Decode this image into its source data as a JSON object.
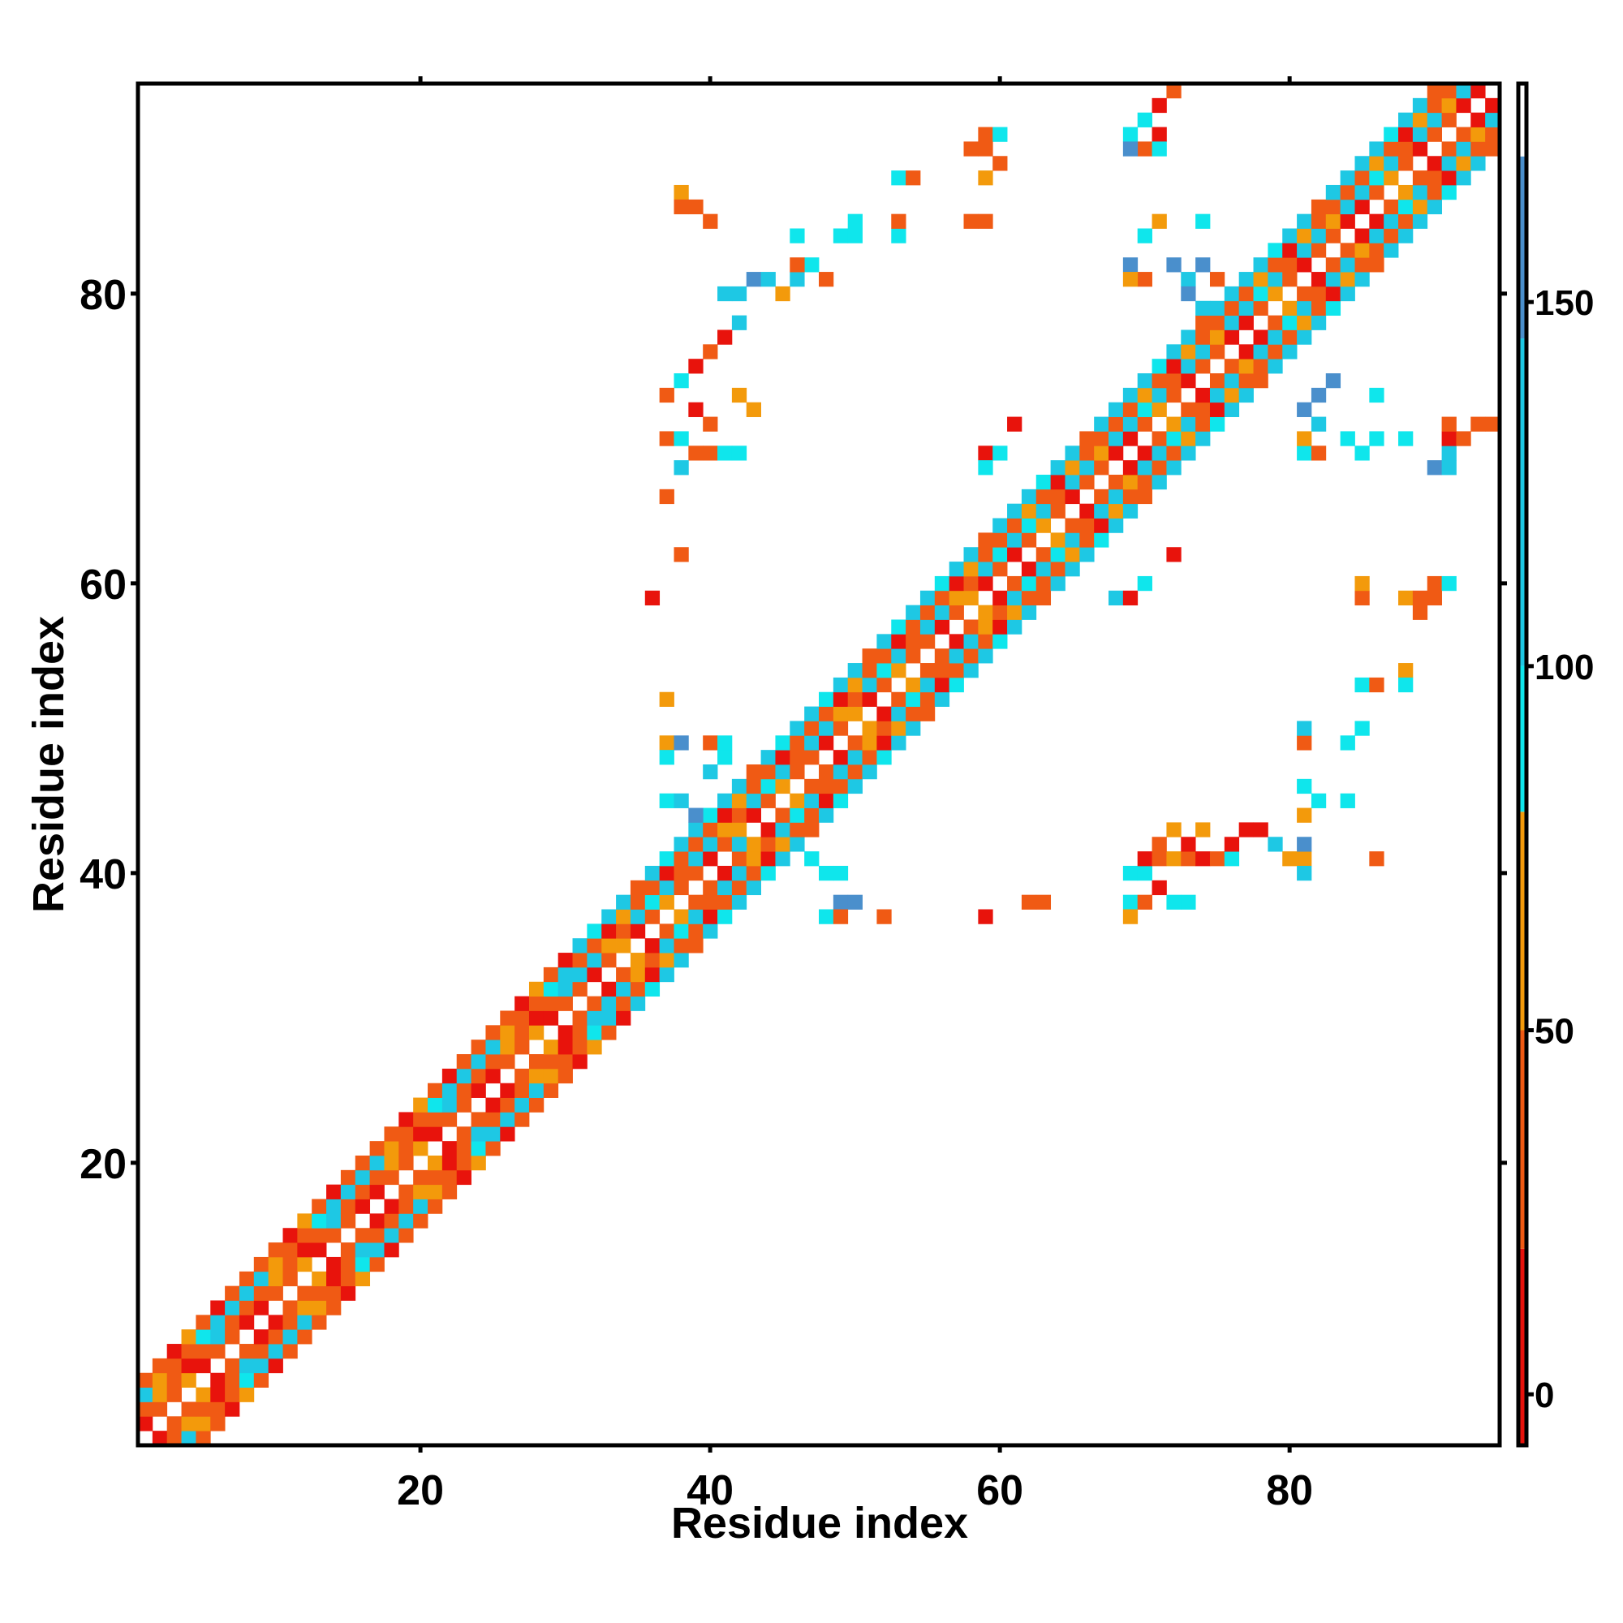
{
  "chart_data": {
    "type": "heatmap",
    "title": "",
    "xlabel": "Residue index",
    "ylabel": "Residue index",
    "xlim": [
      0.5,
      94.5
    ],
    "ylim": [
      0.5,
      94.5
    ],
    "x_ticks": [
      20,
      40,
      60,
      80
    ],
    "y_ticks": [
      20,
      40,
      60,
      80
    ],
    "grid": false,
    "legend": "colorbar-right",
    "colorbar": {
      "range": [
        -7,
        180
      ],
      "ticks": [
        0,
        50,
        100,
        150
      ],
      "bands": [
        {
          "from": -7,
          "to": 20,
          "color": "#e8130c"
        },
        {
          "from": 20,
          "to": 50,
          "color": "#f05a14"
        },
        {
          "from": 50,
          "to": 80,
          "color": "#f39a0b"
        },
        {
          "from": 80,
          "to": 100,
          "color": "#0fe6ec"
        },
        {
          "from": 100,
          "to": 145,
          "color": "#1ec8e4"
        },
        {
          "from": 145,
          "to": 170,
          "color": "#4a8fcc"
        },
        {
          "from": 170,
          "to": 180,
          "color": "#ffffff"
        }
      ]
    },
    "value_classes": {
      "R": {
        "value": 10,
        "color": "#e8130c"
      },
      "O": {
        "value": 35,
        "color": "#f05a14"
      },
      "A": {
        "value": 65,
        "color": "#f39a0b"
      },
      "C": {
        "value": 90,
        "color": "#0fe6ec"
      },
      "T": {
        "value": 120,
        "color": "#1ec8e4"
      },
      "B": {
        "value": 158,
        "color": "#4a8fcc"
      }
    },
    "diagonal_band": [
      {
        "from": 1,
        "to": 30,
        "period": 2,
        "d1": [
          "R",
          "O",
          "O",
          "A",
          "R",
          "O",
          "O",
          "R"
        ],
        "d2": [
          "O",
          "A",
          "O",
          "R",
          "O",
          "T",
          "O",
          "O"
        ],
        "d3": [
          "T",
          "A",
          "O",
          "O",
          "C",
          "T",
          "T",
          "T"
        ],
        "d4": [
          "O",
          "O",
          "R",
          "A",
          "O",
          "R",
          "O",
          "O"
        ]
      },
      {
        "from": 31,
        "to": 60,
        "period": 2,
        "d1": [
          "O",
          "R",
          "O",
          "A",
          "R",
          "O",
          "A",
          "O"
        ],
        "d2": [
          "T",
          "T",
          "A",
          "O",
          "T",
          "C",
          "T",
          "O"
        ],
        "d3": [
          "O",
          "O",
          "R",
          "A",
          "O",
          "O",
          "R",
          "O"
        ],
        "d4": [
          "T",
          "C",
          "T",
          "T",
          "O",
          "T",
          "C",
          "T"
        ]
      },
      {
        "from": 61,
        "to": 94,
        "period": 2,
        "d1": [
          "R",
          "O",
          "A",
          "O",
          "R",
          "O",
          "O",
          "R"
        ],
        "d2": [
          "T",
          "C",
          "T",
          "O",
          "T",
          "T",
          "A",
          "T"
        ],
        "d3": [
          "O",
          "A",
          "O",
          "R",
          "A",
          "O",
          "O",
          "O"
        ],
        "d4": [
          "T",
          "T",
          "C",
          "T",
          "T",
          "O",
          "T",
          "T"
        ]
      }
    ],
    "off_diagonal_contacts": [
      [
        38,
        87,
        "A"
      ],
      [
        38,
        86,
        "O"
      ],
      [
        39,
        86,
        "O"
      ],
      [
        40,
        85,
        "O"
      ],
      [
        41,
        80,
        "T"
      ],
      [
        42,
        80,
        "T"
      ],
      [
        43,
        81,
        "B"
      ],
      [
        44,
        81,
        "T"
      ],
      [
        45,
        80,
        "A"
      ],
      [
        46,
        81,
        "T"
      ],
      [
        47,
        82,
        "C"
      ],
      [
        48,
        81,
        "O"
      ],
      [
        42,
        78,
        "T"
      ],
      [
        41,
        77,
        "R"
      ],
      [
        40,
        76,
        "O"
      ],
      [
        39,
        75,
        "R"
      ],
      [
        38,
        74,
        "C"
      ],
      [
        37,
        73,
        "O"
      ],
      [
        39,
        72,
        "R"
      ],
      [
        40,
        71,
        "O"
      ],
      [
        42,
        73,
        "A"
      ],
      [
        43,
        72,
        "A"
      ],
      [
        37,
        70,
        "O"
      ],
      [
        38,
        70,
        "C"
      ],
      [
        39,
        69,
        "O"
      ],
      [
        40,
        69,
        "O"
      ],
      [
        41,
        69,
        "C"
      ],
      [
        42,
        69,
        "C"
      ],
      [
        38,
        68,
        "T"
      ],
      [
        37,
        66,
        "O"
      ],
      [
        38,
        62,
        "O"
      ],
      [
        36,
        59,
        "R"
      ],
      [
        37,
        52,
        "A"
      ],
      [
        37,
        49,
        "A"
      ],
      [
        38,
        49,
        "B"
      ],
      [
        37,
        48,
        "C"
      ],
      [
        40,
        49,
        "O"
      ],
      [
        41,
        49,
        "C"
      ],
      [
        41,
        48,
        "C"
      ],
      [
        40,
        47,
        "T"
      ],
      [
        37,
        45,
        "C"
      ],
      [
        38,
        45,
        "T"
      ],
      [
        39,
        44,
        "B"
      ],
      [
        40,
        44,
        "B"
      ],
      [
        41,
        43,
        "B"
      ],
      [
        42,
        43,
        "T"
      ],
      [
        42,
        42,
        "T"
      ],
      [
        43,
        42,
        "T"
      ],
      [
        44,
        42,
        "T"
      ],
      [
        45,
        42,
        "T"
      ],
      [
        46,
        42,
        "T"
      ],
      [
        47,
        41,
        "C"
      ],
      [
        48,
        40,
        "C"
      ],
      [
        49,
        40,
        "C"
      ],
      [
        49,
        38,
        "B"
      ],
      [
        50,
        38,
        "B"
      ],
      [
        48,
        37,
        "C"
      ],
      [
        49,
        37,
        "O"
      ],
      [
        52,
        37,
        "O"
      ],
      [
        59,
        37,
        "R"
      ],
      [
        62,
        38,
        "O"
      ],
      [
        63,
        38,
        "O"
      ],
      [
        69,
        38,
        "C"
      ],
      [
        70,
        38,
        "O"
      ],
      [
        69,
        37,
        "A"
      ],
      [
        71,
        39,
        "R"
      ],
      [
        72,
        38,
        "C"
      ],
      [
        73,
        38,
        "C"
      ],
      [
        69,
        40,
        "C"
      ],
      [
        70,
        40,
        "C"
      ],
      [
        70,
        41,
        "R"
      ],
      [
        71,
        41,
        "O"
      ],
      [
        72,
        41,
        "A"
      ],
      [
        73,
        41,
        "O"
      ],
      [
        74,
        41,
        "R"
      ],
      [
        75,
        41,
        "O"
      ],
      [
        76,
        41,
        "C"
      ],
      [
        76,
        42,
        "R"
      ],
      [
        72,
        43,
        "A"
      ],
      [
        71,
        42,
        "O"
      ],
      [
        73,
        42,
        "R"
      ],
      [
        74,
        43,
        "A"
      ],
      [
        77,
        43,
        "R"
      ],
      [
        78,
        43,
        "R"
      ],
      [
        79,
        42,
        "T"
      ],
      [
        80,
        41,
        "A"
      ],
      [
        81,
        41,
        "A"
      ],
      [
        86,
        41,
        "O"
      ],
      [
        81,
        40,
        "T"
      ],
      [
        81,
        42,
        "B"
      ],
      [
        81,
        46,
        "C"
      ],
      [
        82,
        45,
        "C"
      ],
      [
        81,
        44,
        "A"
      ],
      [
        84,
        45,
        "C"
      ],
      [
        81,
        49,
        "O"
      ],
      [
        81,
        50,
        "T"
      ],
      [
        84,
        49,
        "C"
      ],
      [
        85,
        50,
        "C"
      ],
      [
        85,
        53,
        "C"
      ],
      [
        86,
        53,
        "O"
      ],
      [
        88,
        54,
        "A"
      ],
      [
        88,
        53,
        "C"
      ],
      [
        85,
        59,
        "O"
      ],
      [
        85,
        60,
        "A"
      ],
      [
        88,
        59,
        "A"
      ],
      [
        89,
        59,
        "O"
      ],
      [
        90,
        60,
        "O"
      ],
      [
        91,
        60,
        "C"
      ],
      [
        90,
        59,
        "O"
      ],
      [
        89,
        58,
        "O"
      ],
      [
        61,
        71,
        "R"
      ],
      [
        59,
        69,
        "R"
      ],
      [
        59,
        68,
        "C"
      ],
      [
        60,
        69,
        "C"
      ],
      [
        72,
        62,
        "R"
      ],
      [
        68,
        59,
        "T"
      ],
      [
        69,
        59,
        "R"
      ],
      [
        70,
        60,
        "C"
      ],
      [
        81,
        69,
        "C"
      ],
      [
        82,
        69,
        "O"
      ],
      [
        81,
        70,
        "A"
      ],
      [
        82,
        71,
        "T"
      ],
      [
        81,
        72,
        "B"
      ],
      [
        82,
        73,
        "B"
      ],
      [
        83,
        74,
        "B"
      ],
      [
        86,
        73,
        "C"
      ],
      [
        84,
        70,
        "C"
      ],
      [
        88,
        70,
        "C"
      ],
      [
        91,
        69,
        "T"
      ],
      [
        91,
        70,
        "R"
      ],
      [
        92,
        70,
        "O"
      ],
      [
        93,
        71,
        "O"
      ],
      [
        94,
        71,
        "O"
      ],
      [
        90,
        68,
        "B"
      ],
      [
        91,
        68,
        "T"
      ],
      [
        91,
        71,
        "O"
      ],
      [
        85,
        69,
        "C"
      ],
      [
        86,
        70,
        "C"
      ],
      [
        70,
        84,
        "C"
      ],
      [
        71,
        85,
        "A"
      ],
      [
        74,
        85,
        "C"
      ],
      [
        69,
        82,
        "B"
      ],
      [
        70,
        81,
        "O"
      ],
      [
        69,
        81,
        "A"
      ],
      [
        72,
        82,
        "B"
      ],
      [
        73,
        81,
        "T"
      ],
      [
        74,
        82,
        "B"
      ],
      [
        75,
        81,
        "O"
      ],
      [
        73,
        80,
        "B"
      ],
      [
        74,
        79,
        "T"
      ],
      [
        77,
        80,
        "R"
      ],
      [
        76,
        79,
        "R"
      ],
      [
        78,
        79,
        "R"
      ],
      [
        79,
        78,
        "R"
      ],
      [
        69,
        91,
        "C"
      ],
      [
        70,
        92,
        "C"
      ],
      [
        71,
        93,
        "R"
      ],
      [
        72,
        94,
        "O"
      ],
      [
        70,
        90,
        "O"
      ],
      [
        71,
        91,
        "R"
      ],
      [
        69,
        90,
        "B"
      ],
      [
        71,
        90,
        "C"
      ],
      [
        59,
        91,
        "O"
      ],
      [
        60,
        91,
        "C"
      ],
      [
        59,
        90,
        "O"
      ],
      [
        60,
        89,
        "O"
      ],
      [
        58,
        90,
        "O"
      ],
      [
        59,
        88,
        "A"
      ],
      [
        53,
        88,
        "C"
      ],
      [
        54,
        88,
        "O"
      ],
      [
        58,
        85,
        "O"
      ],
      [
        59,
        85,
        "O"
      ],
      [
        53,
        84,
        "C"
      ],
      [
        53,
        85,
        "O"
      ],
      [
        50,
        85,
        "C"
      ],
      [
        49,
        84,
        "C"
      ],
      [
        50,
        84,
        "C"
      ],
      [
        46,
        84,
        "C"
      ],
      [
        46,
        82,
        "O"
      ],
      [
        40,
        85,
        "O"
      ]
    ]
  }
}
